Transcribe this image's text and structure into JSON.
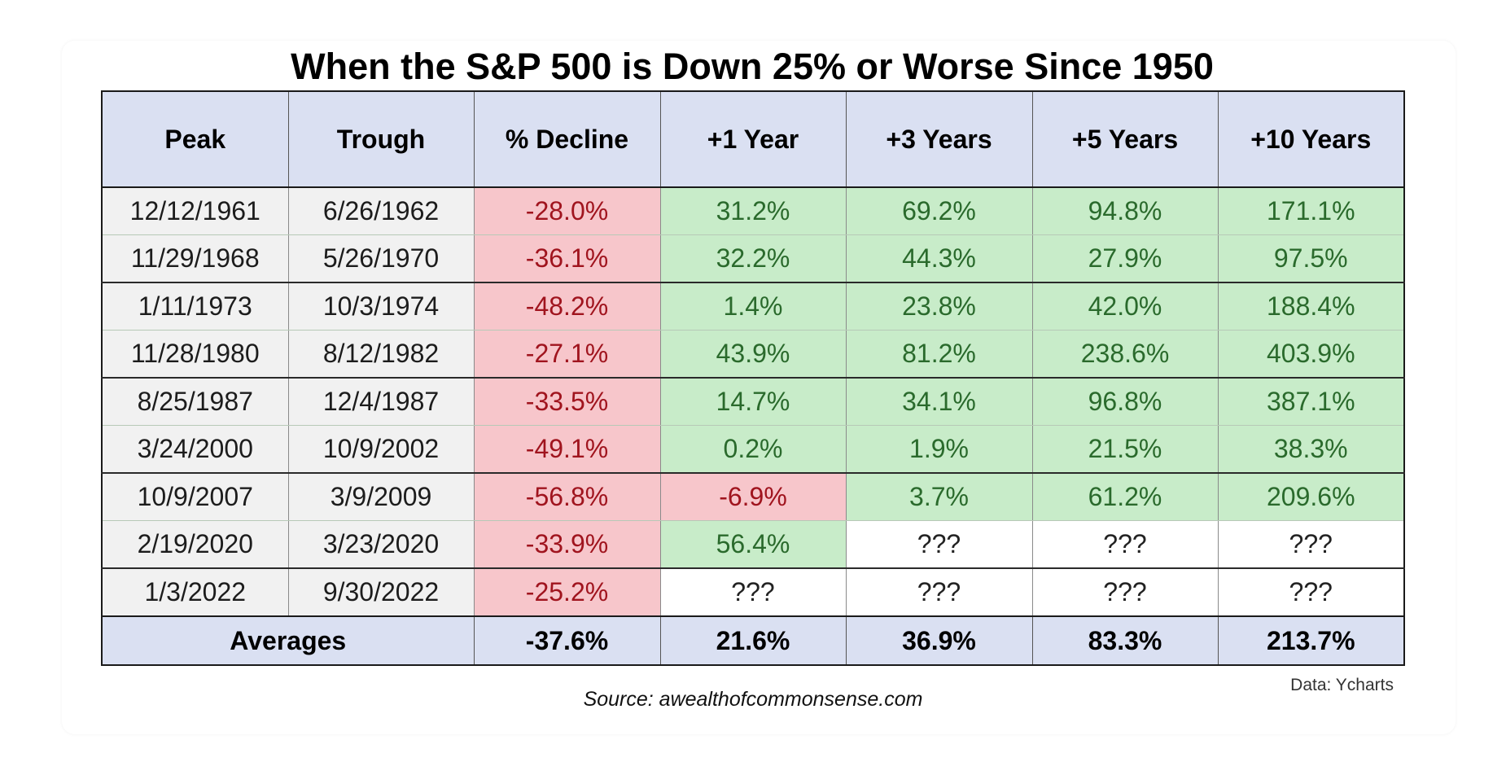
{
  "chart_data": {
    "type": "table",
    "title": "When the S&P 500 is Down 25% or Worse Since 1950",
    "columns": [
      "Peak",
      "Trough",
      "% Decline",
      "+1 Year",
      "+3 Years",
      "+5 Years",
      "+10 Years"
    ],
    "rows": [
      {
        "peak": "12/12/1961",
        "trough": "6/26/1962",
        "decline": "-28.0%",
        "y1": "31.2%",
        "y3": "69.2%",
        "y5": "94.8%",
        "y10": "171.1%"
      },
      {
        "peak": "11/29/1968",
        "trough": "5/26/1970",
        "decline": "-36.1%",
        "y1": "32.2%",
        "y3": "44.3%",
        "y5": "27.9%",
        "y10": "97.5%"
      },
      {
        "peak": "1/11/1973",
        "trough": "10/3/1974",
        "decline": "-48.2%",
        "y1": "1.4%",
        "y3": "23.8%",
        "y5": "42.0%",
        "y10": "188.4%"
      },
      {
        "peak": "11/28/1980",
        "trough": "8/12/1982",
        "decline": "-27.1%",
        "y1": "43.9%",
        "y3": "81.2%",
        "y5": "238.6%",
        "y10": "403.9%"
      },
      {
        "peak": "8/25/1987",
        "trough": "12/4/1987",
        "decline": "-33.5%",
        "y1": "14.7%",
        "y3": "34.1%",
        "y5": "96.8%",
        "y10": "387.1%"
      },
      {
        "peak": "3/24/2000",
        "trough": "10/9/2002",
        "decline": "-49.1%",
        "y1": "0.2%",
        "y3": "1.9%",
        "y5": "21.5%",
        "y10": "38.3%"
      },
      {
        "peak": "10/9/2007",
        "trough": "3/9/2009",
        "decline": "-56.8%",
        "y1": "-6.9%",
        "y3": "3.7%",
        "y5": "61.2%",
        "y10": "209.6%"
      },
      {
        "peak": "2/19/2020",
        "trough": "3/23/2020",
        "decline": "-33.9%",
        "y1": "56.4%",
        "y3": "???",
        "y5": "???",
        "y10": "???"
      },
      {
        "peak": "1/3/2022",
        "trough": "9/30/2022",
        "decline": "-25.2%",
        "y1": "???",
        "y3": "???",
        "y5": "???",
        "y10": "???"
      }
    ],
    "averages": {
      "label": "Averages",
      "decline": "-37.6%",
      "y1": "21.6%",
      "y3": "36.9%",
      "y5": "83.3%",
      "y10": "213.7%"
    },
    "credit": "Data: Ycharts"
  },
  "source": "Source: awealthofcommonsense.com",
  "colors": {
    "header_bg": "#dae0f2",
    "date_bg": "#f1f1f1",
    "negative_bg": "#f7c6cb",
    "negative_text": "#a0141e",
    "positive_bg": "#c8ecc9",
    "positive_text": "#2a6a2c",
    "unknown_bg": "#ffffff"
  }
}
